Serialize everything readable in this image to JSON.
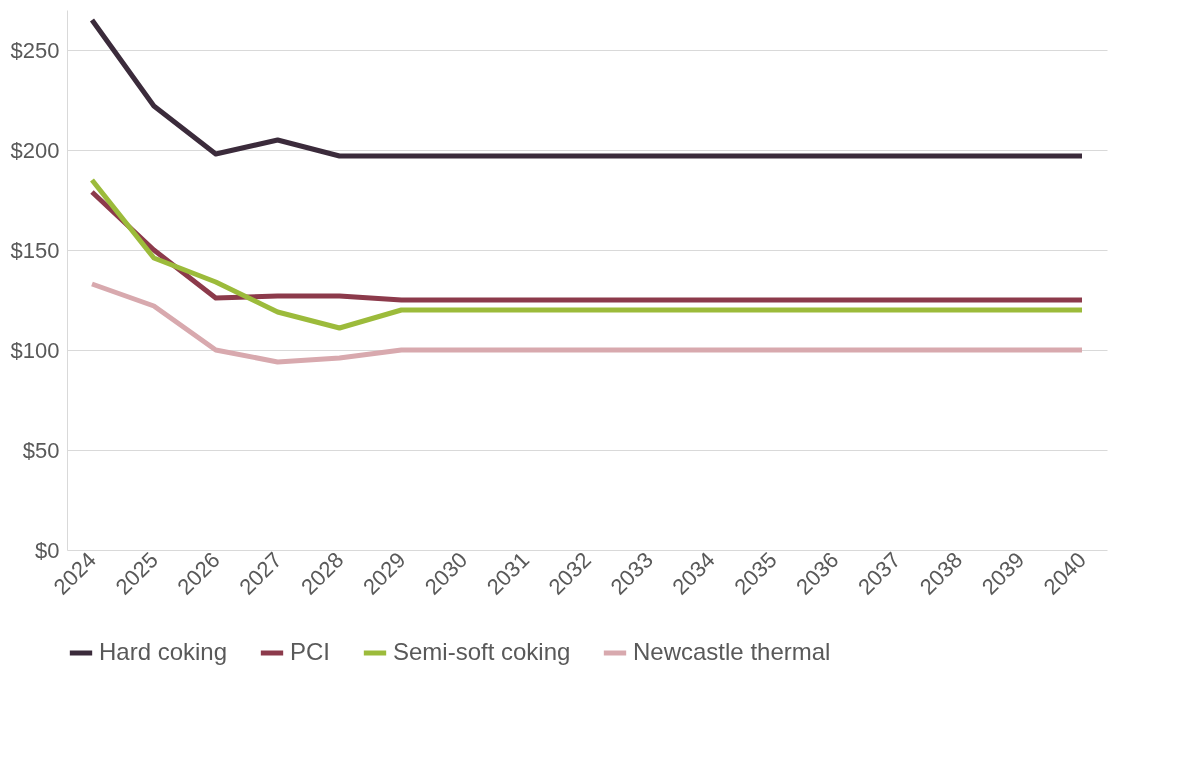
{
  "chart_data": {
    "type": "line",
    "categories": [
      "2024",
      "2025",
      "2026",
      "2027",
      "2028",
      "2029",
      "2030",
      "2031",
      "2032",
      "2033",
      "2034",
      "2035",
      "2036",
      "2037",
      "2038",
      "2039",
      "2040"
    ],
    "series": [
      {
        "name": "Hard coking",
        "color": "#3b2b3b",
        "values": [
          265,
          222,
          198,
          205,
          197,
          197,
          197,
          197,
          197,
          197,
          197,
          197,
          197,
          197,
          197,
          197,
          197
        ]
      },
      {
        "name": "PCI",
        "color": "#8c3a4b",
        "values": [
          179,
          150,
          126,
          127,
          127,
          125,
          125,
          125,
          125,
          125,
          125,
          125,
          125,
          125,
          125,
          125,
          125
        ]
      },
      {
        "name": "Semi-soft coking",
        "color": "#9cbb3b",
        "values": [
          185,
          146,
          134,
          119,
          111,
          120,
          120,
          120,
          120,
          120,
          120,
          120,
          120,
          120,
          120,
          120,
          120
        ]
      },
      {
        "name": "Newcastle thermal",
        "color": "#d8a9ae",
        "values": [
          133,
          122,
          100,
          94,
          96,
          100,
          100,
          100,
          100,
          100,
          100,
          100,
          100,
          100,
          100,
          100,
          100
        ]
      }
    ],
    "ylim": [
      0,
      270
    ],
    "yticks": [
      {
        "value": 0,
        "label": "$0"
      },
      {
        "value": 50,
        "label": "$50"
      },
      {
        "value": 100,
        "label": "$100"
      },
      {
        "value": 150,
        "label": "$150"
      },
      {
        "value": 200,
        "label": "$200"
      },
      {
        "value": 250,
        "label": "$250"
      }
    ],
    "grid": "y",
    "legend": "bottom",
    "marker": "none",
    "line_style": "solid"
  }
}
